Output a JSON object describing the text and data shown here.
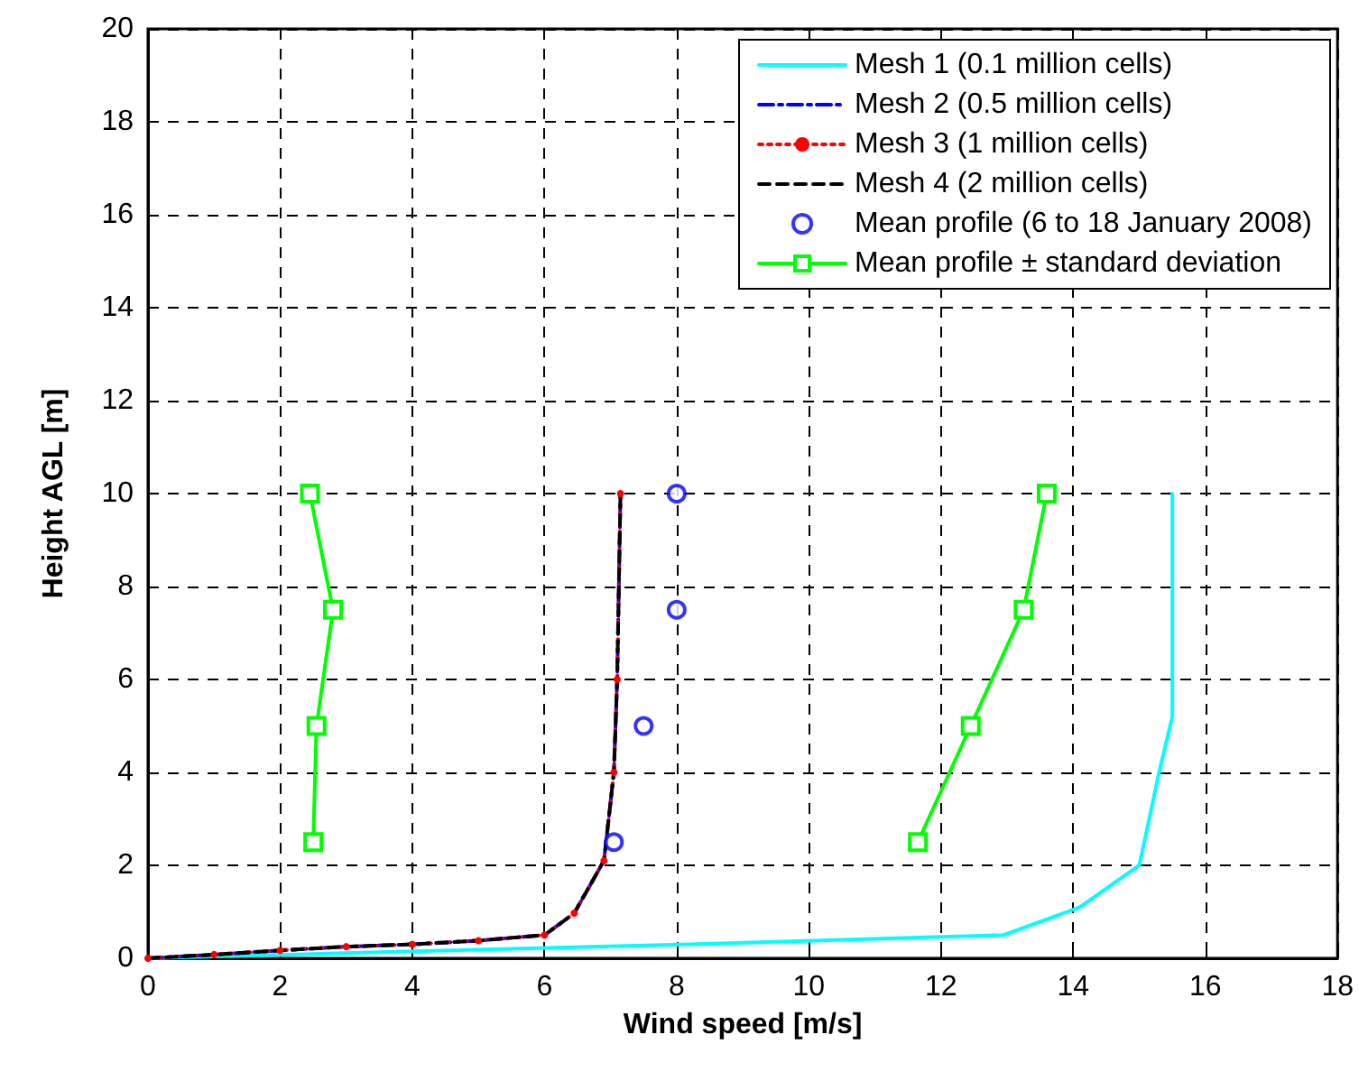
{
  "chart_data": {
    "type": "line",
    "xlabel": "Wind speed [m/s]",
    "ylabel": "Height AGL [m]",
    "xlim": [
      0,
      18
    ],
    "ylim": [
      0,
      20
    ],
    "xticks": [
      0,
      2,
      4,
      6,
      8,
      10,
      12,
      14,
      16,
      18
    ],
    "yticks": [
      0,
      2,
      4,
      6,
      8,
      10,
      12,
      14,
      16,
      18,
      20
    ],
    "grid": true,
    "legend": "top right",
    "series": [
      {
        "name": "Mesh 1 (0.1 million cells)",
        "color": "#00ffff",
        "line_style": "solid",
        "marker": "none",
        "x": [
          0,
          4,
          8.2,
          12.95,
          14.1,
          15,
          15.3,
          15.5,
          15.5
        ],
        "values": [
          0,
          0.15,
          0.3,
          0.5,
          1.1,
          2,
          4,
          5.2,
          10
        ]
      },
      {
        "name": "Mesh 2 (0.5 million cells)",
        "color": "#0000ff",
        "line_style": "dashdot",
        "marker": "none",
        "x": [
          0,
          1,
          2,
          3,
          4,
          5,
          6,
          6.45,
          6.9,
          7.05,
          7.1,
          7.15
        ],
        "values": [
          0,
          0.08,
          0.17,
          0.25,
          0.3,
          0.38,
          0.5,
          0.97,
          2.1,
          4,
          6,
          10
        ]
      },
      {
        "name": "Mesh 3 (1 million cells)",
        "color": "#ff0000",
        "line_style": "dotted",
        "marker": "circle",
        "x": [
          0,
          1,
          2,
          3,
          4,
          5,
          6,
          6.45,
          6.9,
          7.05,
          7.1,
          7.15
        ],
        "values": [
          0,
          0.08,
          0.17,
          0.25,
          0.3,
          0.38,
          0.5,
          0.97,
          2.1,
          4,
          6,
          10
        ]
      },
      {
        "name": "Mesh 4 (2 million cells)",
        "color": "#000000",
        "line_style": "dashed",
        "marker": "none",
        "x": [
          0,
          1,
          2,
          3,
          4,
          5,
          6,
          6.45,
          6.9,
          7.05,
          7.1,
          7.15
        ],
        "values": [
          0,
          0.08,
          0.17,
          0.25,
          0.3,
          0.38,
          0.5,
          0.97,
          2.1,
          4,
          6,
          10
        ]
      },
      {
        "name": "Mean profile (6 to 18 January 2008)",
        "type": "scatter",
        "color": "#0000ff",
        "marker": "circle",
        "x": [
          7.05,
          7.5,
          8,
          8
        ],
        "values": [
          2.5,
          5,
          7.5,
          10
        ]
      },
      {
        "name": "Mean profile ± standard deviation",
        "color": "#00ff00",
        "line_style": "solid",
        "marker": "square",
        "x": [
          2.5,
          2.55,
          2.8,
          2.45
        ],
        "values": [
          2.5,
          5,
          7.5,
          10
        ]
      },
      {
        "color": "#00ff00",
        "line_style": "solid",
        "marker": "square",
        "x": [
          11.65,
          12.45,
          13.25,
          13.6
        ],
        "values": [
          2.5,
          5,
          7.5,
          10
        ]
      }
    ]
  }
}
